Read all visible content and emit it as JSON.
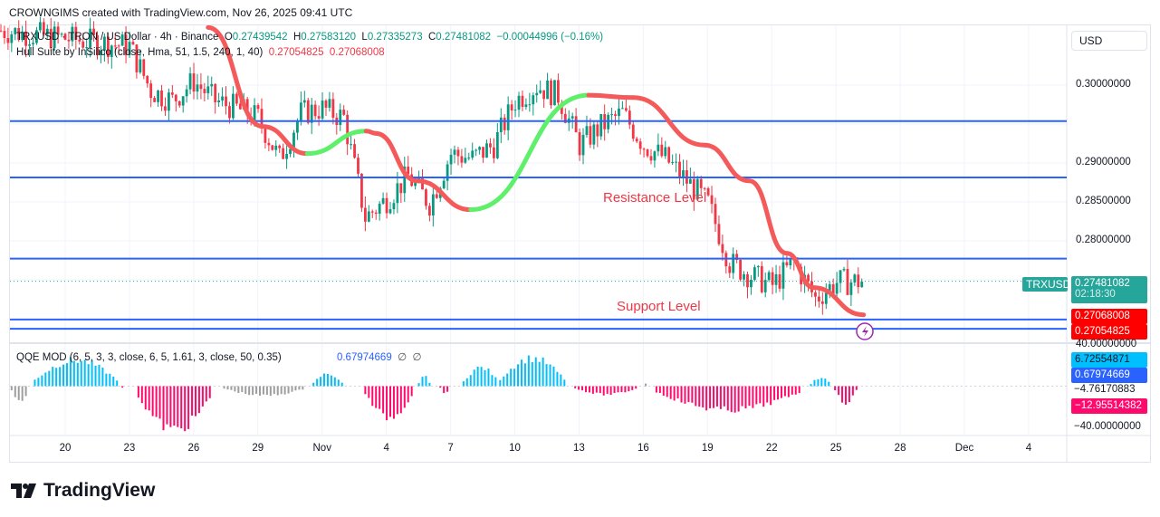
{
  "header": "CROWNGIMS created with TradingView.com, Nov 26, 2025 09:41 UTC",
  "legend": {
    "symbol": "TRXUSD · TRON / US Dollar · 4h · Binance",
    "o_label": "O",
    "o": "0.27439542",
    "h_label": "H",
    "h": "0.27583120",
    "l_label": "L",
    "l": "0.27335273",
    "c_label": "C",
    "c": "0.27481082",
    "change": "−0.00044996 (−0.16%)",
    "hull_name": "Hull Suite by InSilico (close, Hma, 51, 1.5, 240, 1, 40)",
    "hull_v1": "0.27054825",
    "hull_v2": "0.27068008",
    "qqe_name": "QQE MOD (6, 5, 3, 3, close, 6, 5, 1.61, 3, close, 50, 0.35)",
    "qqe_val": "0.67974669",
    "qqe_na1": "∅",
    "qqe_na2": "∅"
  },
  "currency": "USD",
  "colors": {
    "up": "#089981",
    "down": "#f23645",
    "level_line": "#2962ff",
    "hull_down": "#f55a5a",
    "hull_up": "#5ef06a",
    "qqe_up": "#00bfff",
    "qqe_down": "#ff0a6c",
    "qqe_neutral": "#9e9e9e"
  },
  "annotations": {
    "resistance": "Resistance Level",
    "support": "Support Level"
  },
  "price_labels": {
    "symbol": "TRXUSD",
    "last": "0.27481082",
    "countdown": "02:18:30",
    "hull1": "0.27068008",
    "hull2": "0.27054825"
  },
  "qqe_labels": {
    "top": "40.00000000",
    "v1": "6.72554871",
    "v2": "0.67974669",
    "v3": "−4.76170883",
    "v4": "−12.95514382",
    "bottom": "−40.00000000"
  },
  "logo": "TradingView",
  "chart_data": [
    {
      "type": "candlestick",
      "title": "TRXUSD · TRON / US Dollar · 4h · Binance",
      "y_ticks": [
        "0.30000000",
        "0.29000000",
        "0.28500000",
        "0.28000000"
      ],
      "x_ticks": [
        "20",
        "23",
        "26",
        "29",
        "Nov",
        "4",
        "7",
        "10",
        "13",
        "16",
        "19",
        "22",
        "25",
        "28",
        "Dec",
        "4"
      ],
      "ylim": [
        0.2655,
        0.3082
      ],
      "price_path": [
        [
          "Oct 17",
          0.307
        ],
        [
          "Oct 20",
          0.306
        ],
        [
          "Oct 23",
          0.305
        ],
        [
          "Oct 24",
          0.2993
        ],
        [
          "Oct 25",
          0.298
        ],
        [
          "Oct 26",
          0.3005
        ],
        [
          "Oct 27",
          0.298
        ],
        [
          "Oct 28",
          0.297
        ],
        [
          "Oct 29",
          0.2958
        ],
        [
          "Oct 30",
          0.2905
        ],
        [
          "Oct 31",
          0.2964
        ],
        [
          "Nov 1",
          0.297
        ],
        [
          "Nov 2",
          0.2958
        ],
        [
          "Nov 3",
          0.283
        ],
        [
          "Nov 4",
          0.2853
        ],
        [
          "Nov 5",
          0.2883
        ],
        [
          "Nov 6",
          0.2848
        ],
        [
          "Nov 7",
          0.2912
        ],
        [
          "Nov 8",
          0.2906
        ],
        [
          "Nov 9",
          0.2923
        ],
        [
          "Nov 10",
          0.298
        ],
        [
          "Nov 11",
          0.2999
        ],
        [
          "Nov 12",
          0.2987
        ],
        [
          "Nov 13",
          0.2923
        ],
        [
          "Nov 14",
          0.2947
        ],
        [
          "Nov 15",
          0.2964
        ],
        [
          "Nov 16",
          0.2923
        ],
        [
          "Nov 17",
          0.2906
        ],
        [
          "Nov 18",
          0.2877
        ],
        [
          "Nov 19",
          0.2848
        ],
        [
          "Nov 20",
          0.2772
        ],
        [
          "Nov 21",
          0.2755
        ],
        [
          "Nov 22",
          0.2743
        ],
        [
          "Nov 23",
          0.2772
        ],
        [
          "Nov 24",
          0.2726
        ],
        [
          "Nov 25",
          0.2747
        ],
        [
          "Nov 26 04:00",
          0.2748
        ]
      ],
      "levels": [
        0.29537895,
        0.28814397,
        0.27771532,
        0.2699,
        0.2687
      ],
      "last_price": 0.27481082,
      "hull": [
        [
          "Oct 26 16:00",
          0.3074,
          "down"
        ],
        [
          "Oct 29 05:00",
          0.2947,
          "down"
        ],
        [
          "Oct 31 07:00",
          0.2912,
          "up"
        ],
        [
          "Nov 3 01:00",
          0.2941,
          "down"
        ],
        [
          "Nov 3 12:00",
          0.2938,
          "down"
        ],
        [
          "Nov 5 10:00",
          0.2877,
          "down"
        ],
        [
          "Nov 7 22:00",
          0.284,
          "up"
        ],
        [
          "Nov 13 10:00",
          0.2987,
          "down"
        ],
        [
          "Nov 15 12:00",
          0.2984,
          "down"
        ],
        [
          "Nov 18 20:00",
          0.2923,
          "down"
        ],
        [
          "Nov 20 22:00",
          0.2877,
          "down"
        ],
        [
          "Nov 22 16:00",
          0.2784,
          "down"
        ],
        [
          "Nov 23 22:00",
          0.274,
          "down"
        ],
        [
          "Nov 26 06:00",
          0.2705,
          "down"
        ]
      ]
    },
    {
      "type": "histogram",
      "title": "QQE MOD (6, 5, 3, 3, close, 6, 5, 1.61, 3, close, 50, 0.35)",
      "ylim": [
        -40,
        40
      ],
      "segments": [
        [
          "Oct 17 12:00",
          "Oct 18 07:00",
          -15,
          "neutral"
        ],
        [
          "Oct 18 14:00",
          "Oct 22 10:00",
          25,
          "up"
        ],
        [
          "Oct 22 16:00",
          "Oct 22 18:00",
          -5,
          "down"
        ],
        [
          "Oct 23 10:00",
          "Oct 26 19:00",
          -42,
          "down"
        ],
        [
          "Oct 27 10:00",
          "Oct 31 05:00",
          -9,
          "neutral"
        ],
        [
          "Oct 31 14:00",
          "Nov 1 22:00",
          12,
          "up"
        ],
        [
          "Nov 3 00:00",
          "Nov 5 05:00",
          -30,
          "down"
        ],
        [
          "Nov 5 12:00",
          "Nov 6 00:00",
          11,
          "up"
        ],
        [
          "Nov 6 12:00",
          "Nov 6 22:00",
          -7,
          "down"
        ],
        [
          "Nov 7 14:00",
          "Nov 9 05:00",
          18,
          "up"
        ],
        [
          "Nov 9 07:00",
          "Nov 12 07:00",
          27,
          "up"
        ],
        [
          "Nov 12 19:00",
          "Nov 15 17:00",
          -8,
          "down"
        ],
        [
          "Nov 16 02:00",
          "Nov 16 04:00",
          9,
          "neutral"
        ],
        [
          "Nov 16 14:00",
          "Nov 23 07:00",
          -23,
          "down"
        ],
        [
          "Nov 23 19:00",
          "Nov 24 17:00",
          8,
          "up"
        ],
        [
          "Nov 24 22:00",
          "Nov 25 22:00",
          -16,
          "down"
        ]
      ]
    }
  ]
}
